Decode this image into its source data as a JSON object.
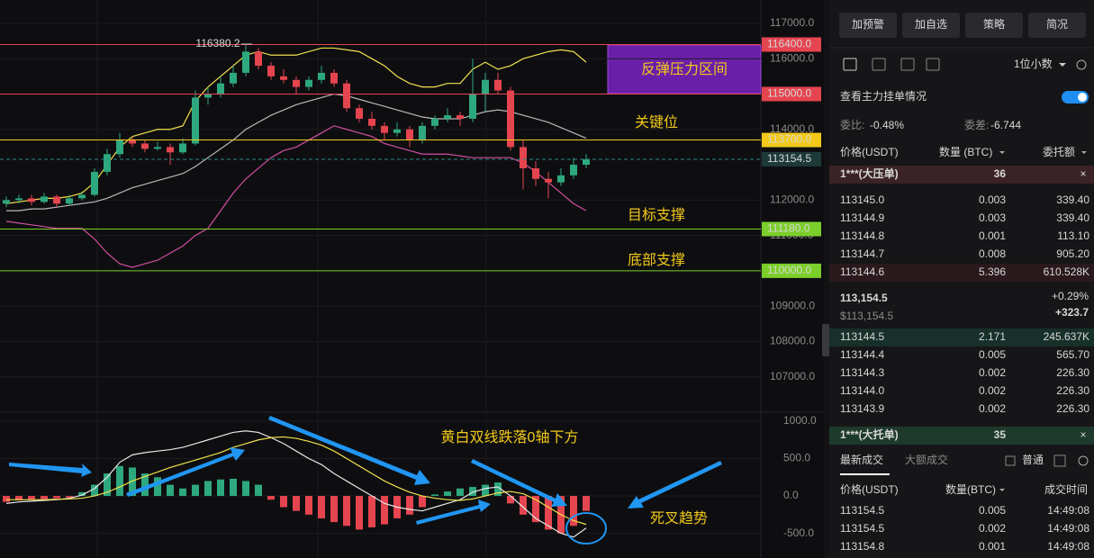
{
  "chart_data": {
    "type": "candlestick",
    "ylim": [
      106000,
      117660
    ],
    "candles": [
      [
        111900,
        112100,
        111800,
        112000
      ],
      [
        112000,
        112150,
        111900,
        112050
      ],
      [
        112050,
        112150,
        111850,
        111950
      ],
      [
        111950,
        112200,
        111900,
        112100
      ],
      [
        112100,
        112150,
        111800,
        111900
      ],
      [
        111900,
        112150,
        111850,
        112050
      ],
      [
        112050,
        112250,
        112000,
        112150
      ],
      [
        112150,
        112900,
        112100,
        112800
      ],
      [
        112800,
        113450,
        112700,
        113300
      ],
      [
        113300,
        113900,
        113200,
        113700
      ],
      [
        113700,
        113800,
        113500,
        113600
      ],
      [
        113600,
        113700,
        113350,
        113450
      ],
      [
        113450,
        113650,
        113400,
        113500
      ],
      [
        113500,
        113600,
        113000,
        113350
      ],
      [
        113350,
        113750,
        113300,
        113600
      ],
      [
        113600,
        115100,
        113550,
        114900
      ],
      [
        114900,
        115200,
        114700,
        115000
      ],
      [
        115000,
        115500,
        114900,
        115300
      ],
      [
        115300,
        115800,
        115200,
        115600
      ],
      [
        115600,
        116380.2,
        115500,
        116200
      ],
      [
        116200,
        116300,
        115700,
        115800
      ],
      [
        115800,
        115900,
        115400,
        115500
      ],
      [
        115500,
        115700,
        115300,
        115400
      ],
      [
        115400,
        115500,
        115000,
        115200
      ],
      [
        115200,
        115500,
        115100,
        115400
      ],
      [
        115400,
        115800,
        115300,
        115600
      ],
      [
        115600,
        115700,
        115200,
        115300
      ],
      [
        115300,
        115400,
        114500,
        114600
      ],
      [
        114600,
        114700,
        114200,
        114300
      ],
      [
        114300,
        114500,
        114000,
        114100
      ],
      [
        114100,
        114200,
        113700,
        113900
      ],
      [
        113900,
        114200,
        113800,
        114000
      ],
      [
        114000,
        114100,
        113500,
        113700
      ],
      [
        113700,
        114200,
        113600,
        114100
      ],
      [
        114100,
        114400,
        114000,
        114300
      ],
      [
        114300,
        114600,
        114200,
        114400
      ],
      [
        114400,
        114500,
        114100,
        114300
      ],
      [
        114300,
        116000,
        114200,
        115000
      ],
      [
        115000,
        115600,
        114500,
        115400
      ],
      [
        115400,
        115600,
        115000,
        115100
      ],
      [
        115100,
        115200,
        113400,
        113500
      ],
      [
        113500,
        113700,
        112300,
        112900
      ],
      [
        112900,
        113100,
        112400,
        112600
      ],
      [
        112600,
        112800,
        112050,
        112500
      ],
      [
        112500,
        112900,
        112400,
        112700
      ],
      [
        112700,
        113200,
        112600,
        113000
      ],
      [
        113000,
        113300,
        112900,
        113154.5
      ]
    ],
    "up_color": "#2ea87e",
    "down_color": "#e5454f",
    "bollinger": {
      "upper": {
        "color": "#f2e14c",
        "values": [
          111900,
          111950,
          112000,
          112050,
          112050,
          112100,
          112200,
          112500,
          113000,
          113500,
          113800,
          113900,
          114000,
          114000,
          114100,
          114800,
          115200,
          115500,
          115800,
          116100,
          116200,
          116100,
          116100,
          116100,
          116200,
          116300,
          116300,
          116250,
          116200,
          116000,
          115800,
          115500,
          115300,
          115200,
          115200,
          115300,
          115300,
          115700,
          115900,
          115700,
          115800,
          116000,
          116100,
          116200,
          116250,
          116200,
          115900
        ]
      },
      "mid": {
        "color": "#b9b9b9",
        "values": [
          111700,
          111700,
          111750,
          111750,
          111800,
          111850,
          111900,
          111950,
          112050,
          112200,
          112350,
          112450,
          112550,
          112650,
          112750,
          112950,
          113200,
          113450,
          113700,
          114000,
          114200,
          114400,
          114550,
          114700,
          114800,
          114900,
          115000,
          114950,
          114850,
          114750,
          114650,
          114550,
          114450,
          114350,
          114300,
          114300,
          114300,
          114400,
          114500,
          114550,
          114500,
          114400,
          114300,
          114200,
          114050,
          113900,
          113750
        ]
      },
      "lower": {
        "color": "#d14fa0",
        "values": [
          111400,
          111350,
          111300,
          111250,
          111200,
          111200,
          111200,
          110900,
          110500,
          110200,
          110100,
          110200,
          110300,
          110500,
          110700,
          111000,
          111200,
          111700,
          112200,
          112600,
          112900,
          113200,
          113400,
          113500,
          113700,
          113900,
          114100,
          114000,
          113900,
          113800,
          113600,
          113500,
          113400,
          113300,
          113300,
          113300,
          113250,
          113200,
          113200,
          113200,
          113200,
          113050,
          112800,
          112500,
          112200,
          111900,
          111700
        ]
      }
    },
    "yticks": [
      {
        "value": 117000,
        "label": "117000.0"
      },
      {
        "value": 116000,
        "label": "116000.0"
      },
      {
        "value": 114000,
        "label": "114000.0"
      },
      {
        "value": 112000,
        "label": "112000.0"
      },
      {
        "value": 111000,
        "label": "111000.0"
      },
      {
        "value": 109000,
        "label": "109000.0"
      },
      {
        "value": 108000,
        "label": "108000.0"
      },
      {
        "value": 107000,
        "label": "107000.0"
      }
    ],
    "levels": [
      {
        "value": 116400,
        "label": "116400.0",
        "color": "#e5454f"
      },
      {
        "value": 115000,
        "label": "115000.0",
        "color": "#e5454f"
      },
      {
        "value": 113700,
        "label": "113700.0",
        "color": "#f2c919"
      },
      {
        "value": 113154.5,
        "color": "#2a8c86",
        "dashed": true
      },
      {
        "value": 111180,
        "label": "111180.0",
        "color": "#7ccf2a"
      },
      {
        "value": 110000,
        "label": "110000.0",
        "color": "#7ccf2a"
      }
    ],
    "zone_label": "反弹压力区间",
    "key_label": "关键位",
    "target_label": "目标支撑",
    "bottom_label": "底部支撑",
    "macd": {
      "ylim": [
        -830,
        1120
      ],
      "yticks": [
        {
          "value": 1000,
          "label": "1000.0"
        },
        {
          "value": 500,
          "label": "500.0"
        },
        {
          "value": 0,
          "label": "0.0"
        },
        {
          "value": -500,
          "label": "-500.0"
        }
      ],
      "hist": [
        -80,
        -60,
        -50,
        -40,
        -30,
        -20,
        50,
        150,
        300,
        400,
        380,
        300,
        250,
        150,
        100,
        150,
        200,
        220,
        230,
        200,
        150,
        -50,
        -150,
        -200,
        -250,
        -300,
        -350,
        -400,
        -450,
        -420,
        -380,
        -300,
        -250,
        -150,
        20,
        60,
        100,
        120,
        150,
        180,
        -100,
        -250,
        -350,
        -450,
        -500,
        -400,
        -200
      ],
      "dif": {
        "color": "#e8e8e8",
        "values": [
          -100,
          -80,
          -70,
          -60,
          -50,
          -30,
          10,
          100,
          250,
          450,
          550,
          580,
          600,
          620,
          650,
          700,
          750,
          800,
          850,
          870,
          850,
          780,
          700,
          600,
          500,
          420,
          300,
          200,
          100,
          0,
          -100,
          -150,
          -180,
          -200,
          -150,
          -100,
          -50,
          50,
          100,
          120,
          0,
          -150,
          -300,
          -400,
          -500,
          -550,
          -430
        ]
      },
      "dea": {
        "color": "#f2e14c",
        "values": [
          -50,
          -50,
          -50,
          -50,
          -45,
          -40,
          -30,
          0,
          50,
          120,
          200,
          260,
          320,
          380,
          430,
          480,
          530,
          580,
          650,
          700,
          750,
          780,
          790,
          770,
          730,
          680,
          600,
          500,
          400,
          300,
          200,
          120,
          50,
          0,
          -30,
          -50,
          -60,
          -40,
          0,
          40,
          60,
          30,
          -50,
          -150,
          -250,
          -330,
          -380
        ]
      },
      "note": "黄白双线跌落0轴下方",
      "cross_label": "死叉趋势"
    }
  },
  "panel": {
    "buttons": [
      "加预警",
      "加自选",
      "策略",
      "简况"
    ],
    "decimals": "1位小数",
    "main_orders": "查看主力挂单情况",
    "ratio_label": "委比:",
    "ratio": "-0.48%",
    "diff_label": "委差:",
    "diff": "-6.744",
    "headers": [
      "价格(USDT)",
      "数量 (BTC)",
      "委托额"
    ],
    "big_ask": {
      "name": "1***(大压单)",
      "qty": "36"
    },
    "asks": [
      [
        "113145.0",
        "0.003",
        "339.40"
      ],
      [
        "113144.9",
        "0.003",
        "339.40"
      ],
      [
        "113144.8",
        "0.001",
        "113.10"
      ],
      [
        "113144.7",
        "0.008",
        "905.20"
      ],
      [
        "113144.6",
        "5.396",
        "610.528K"
      ]
    ],
    "last": "113,154.5",
    "last_usd": "$113,154.5",
    "change_pct": "+0.29%",
    "change": "+323.7",
    "bids": [
      [
        "113144.5",
        "2.171",
        "245.637K"
      ],
      [
        "113144.4",
        "0.005",
        "565.70"
      ],
      [
        "113144.3",
        "0.002",
        "226.30"
      ],
      [
        "113144.0",
        "0.002",
        "226.30"
      ],
      [
        "113143.9",
        "0.002",
        "226.30"
      ]
    ],
    "big_bid": {
      "name": "1***(大托单)",
      "qty": "35"
    },
    "tabs": [
      "最新成交",
      "大额成交"
    ],
    "normal": "普通",
    "trade_headers": [
      "价格(USDT)",
      "数量(BTC)",
      "成交时间"
    ],
    "trades": [
      [
        "113154.5",
        "0.005",
        "14:49:08",
        "buy"
      ],
      [
        "113154.5",
        "0.002",
        "14:49:08",
        "sell"
      ],
      [
        "113154.8",
        "0.001",
        "14:49:08",
        "sell"
      ]
    ]
  }
}
